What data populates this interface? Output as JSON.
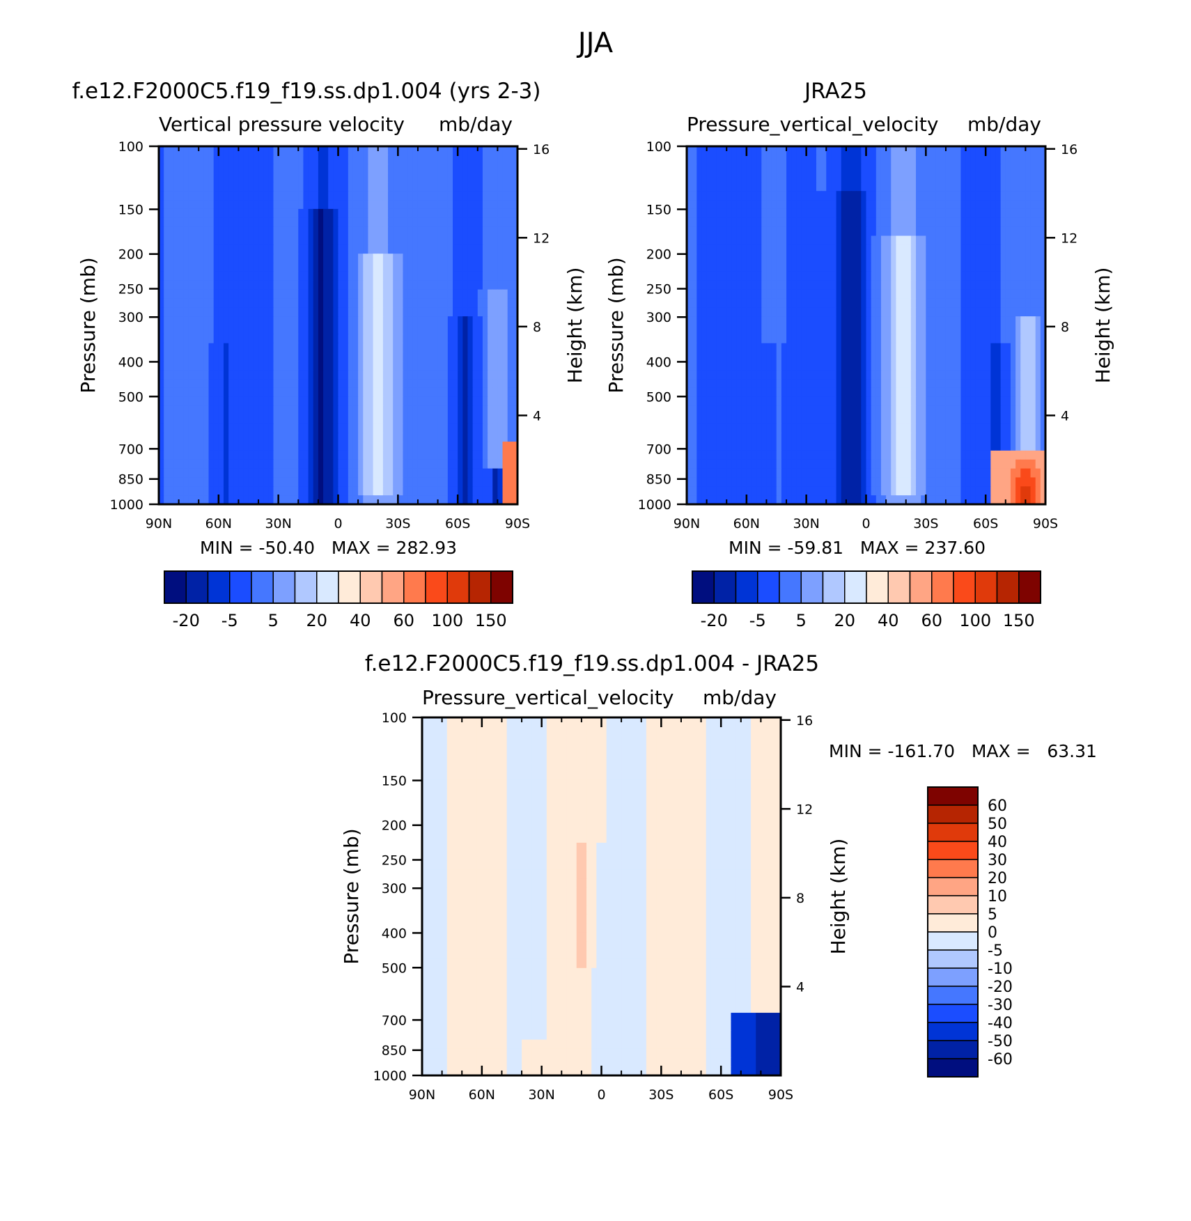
{
  "page_title": "JJA",
  "panels": [
    {
      "title": "f.e12.F2000C5.f19_f19.ss.dp1.004 (yrs 2-3)",
      "subtitle_left": "Vertical pressure velocity",
      "subtitle_right": "mb/day",
      "min_max": "MIN = -50.40   MAX = 282.93"
    },
    {
      "title": "JRA25",
      "subtitle_left": "Pressure_vertical_velocity",
      "subtitle_right": "mb/day",
      "min_max": "MIN = -59.81   MAX = 237.60"
    },
    {
      "title": "f.e12.F2000C5.f19_f19.ss.dp1.004 - JRA25",
      "subtitle_left": "Pressure_vertical_velocity",
      "subtitle_right": "mb/day",
      "min_max": "MIN = -161.70   MAX =   63.31"
    }
  ],
  "chart_data": [
    {
      "type": "heatmap",
      "title": "f.e12.F2000C5.f19_f19.ss.dp1.004 (yrs 2-3)",
      "subtitle": "Vertical pressure velocity  mb/day",
      "xlabel": "",
      "ylabel": "Pressure (mb)",
      "y2label": "Height (km)",
      "x_ticks": [
        "90N",
        "60N",
        "30N",
        "0",
        "30S",
        "60S",
        "90S"
      ],
      "y_ticks": [
        "100",
        "150",
        "200",
        "250",
        "300",
        "400",
        "500",
        "700",
        "850",
        "1000"
      ],
      "y2_ticks": [
        "16",
        "12",
        "8",
        "4"
      ],
      "ylim": [
        1000,
        100
      ],
      "y_scale": "log",
      "min": -50.4,
      "max": 282.93,
      "colorbar_labels": [
        "-20",
        "-5",
        "5",
        "20",
        "40",
        "60",
        "100",
        "150"
      ]
    },
    {
      "type": "heatmap",
      "title": "JRA25",
      "subtitle": "Pressure_vertical_velocity  mb/day",
      "xlabel": "",
      "ylabel": "Pressure (mb)",
      "y2label": "Height (km)",
      "x_ticks": [
        "90N",
        "60N",
        "30N",
        "0",
        "30S",
        "60S",
        "90S"
      ],
      "y_ticks": [
        "100",
        "150",
        "200",
        "250",
        "300",
        "400",
        "500",
        "700",
        "850",
        "1000"
      ],
      "y2_ticks": [
        "16",
        "12",
        "8",
        "4"
      ],
      "ylim": [
        1000,
        100
      ],
      "y_scale": "log",
      "min": -59.81,
      "max": 237.6,
      "colorbar_labels": [
        "-20",
        "-5",
        "5",
        "20",
        "40",
        "60",
        "100",
        "150"
      ]
    },
    {
      "type": "heatmap",
      "title": "f.e12.F2000C5.f19_f19.ss.dp1.004 - JRA25",
      "subtitle": "Pressure_vertical_velocity  mb/day",
      "xlabel": "",
      "ylabel": "Pressure (mb)",
      "y2label": "Height (km)",
      "x_ticks": [
        "90N",
        "60N",
        "30N",
        "0",
        "30S",
        "60S",
        "90S"
      ],
      "y_ticks": [
        "100",
        "150",
        "200",
        "250",
        "300",
        "400",
        "500",
        "700",
        "850",
        "1000"
      ],
      "y2_ticks": [
        "16",
        "12",
        "8",
        "4"
      ],
      "ylim": [
        1000,
        100
      ],
      "y_scale": "log",
      "min": -161.7,
      "max": 63.31,
      "colorbar_labels": [
        "60",
        "50",
        "40",
        "30",
        "20",
        "10",
        "5",
        "0",
        "-5",
        "-10",
        "-20",
        "-30",
        "-40",
        "-50",
        "-60"
      ]
    }
  ],
  "colors": {
    "abs_scale": [
      "#000e7f",
      "#0022a6",
      "#0034d6",
      "#1b4dff",
      "#4577ff",
      "#7da0ff",
      "#b0c8ff",
      "#d9e9ff",
      "#ffebd9",
      "#ffc9b0",
      "#ffa584",
      "#ff7a4d",
      "#fa4a1a",
      "#e03a0b",
      "#b62502",
      "#7e0300"
    ],
    "diff_scale": [
      "#000e7f",
      "#0022a6",
      "#0034d6",
      "#1b4dff",
      "#4577ff",
      "#7da0ff",
      "#b0c8ff",
      "#d9e9ff",
      "#ffebd9",
      "#ffc9b0",
      "#ffa584",
      "#ff7a4d",
      "#fa4a1a",
      "#e03a0b",
      "#b62502",
      "#7e0300"
    ]
  }
}
